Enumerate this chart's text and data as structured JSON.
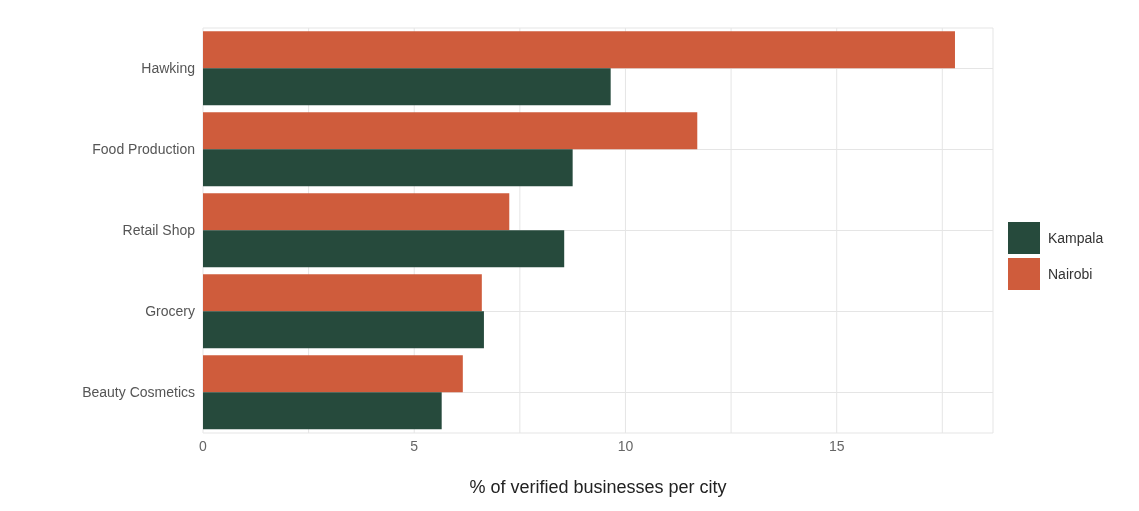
{
  "chart_data": {
    "type": "bar",
    "orientation": "horizontal",
    "xlabel": "% of verified businesses per city",
    "categories": [
      "Hawking",
      "Food Production",
      "Retail Shop",
      "Grocery",
      "Beauty Cosmetics"
    ],
    "series": [
      {
        "name": "Kampala",
        "color": "#264a3c",
        "values": [
          9.65,
          8.75,
          8.55,
          6.65,
          5.65
        ]
      },
      {
        "name": "Nairobi",
        "color": "#cf5c3c",
        "values": [
          17.8,
          11.7,
          7.25,
          6.6,
          6.15
        ]
      }
    ],
    "xlim": [
      0,
      18.7
    ],
    "xticks": [
      0,
      {
        "value": 2.5,
        "label": null
      },
      5,
      {
        "value": 7.5,
        "label": null
      },
      10,
      {
        "value": 12.5,
        "label": null
      },
      15,
      {
        "value": 17.5,
        "label": null
      }
    ],
    "grid": true,
    "legend": "right"
  }
}
